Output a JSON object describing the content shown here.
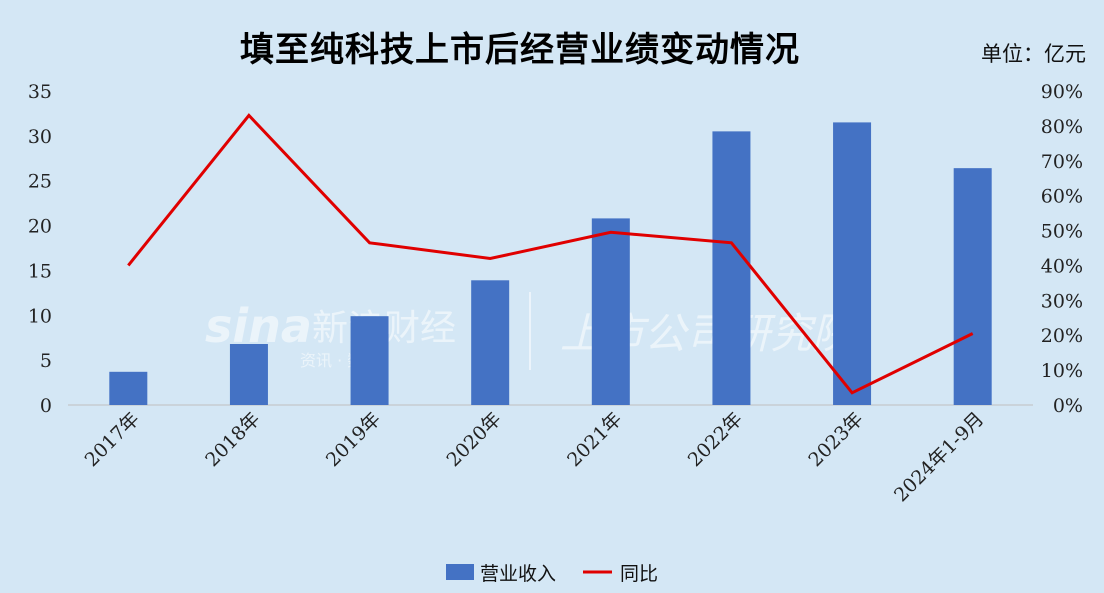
{
  "title": "填至纯科技上市后经营业绩变动情况",
  "unit": "单位：亿元",
  "watermark": {
    "brand": "sina",
    "brand_cn": "新浪财经",
    "sub": "资讯 · 数据",
    "right": "上市公司研究院"
  },
  "colors": {
    "bar": "#4472c4",
    "line": "#e00000",
    "background": "#d4e7f5"
  },
  "chart_data": {
    "type": "bar",
    "categories": [
      "2017年",
      "2018年",
      "2019年",
      "2020年",
      "2021年",
      "2022年",
      "2023年",
      "2024年1-9月"
    ],
    "series": [
      {
        "name": "营业收入",
        "type": "bar",
        "axis": "left",
        "values": [
          3.7,
          6.8,
          9.9,
          13.9,
          20.8,
          30.5,
          31.5,
          26.4
        ]
      },
      {
        "name": "同比",
        "type": "line",
        "axis": "right",
        "values": [
          40,
          83,
          46.5,
          42,
          49.5,
          46.5,
          3.5,
          20.5
        ]
      }
    ],
    "y_left": {
      "min": 0,
      "max": 35,
      "ticks": [
        "35",
        "30",
        "25",
        "20",
        "15",
        "10",
        "5",
        "0"
      ]
    },
    "y_right": {
      "min": 0,
      "max": 90,
      "ticks": [
        "90%",
        "80%",
        "70%",
        "60%",
        "50%",
        "40%",
        "30%",
        "20%",
        "10%",
        "0%"
      ]
    },
    "grid": false,
    "legend": "bottom"
  }
}
